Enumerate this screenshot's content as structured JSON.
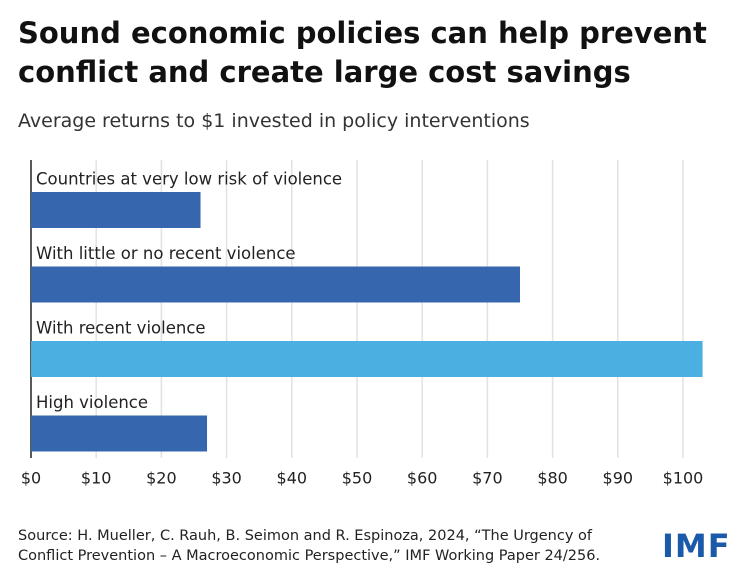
{
  "chart_data": {
    "type": "hbar",
    "title": "Sound economic policies can help prevent conflict and create large cost savings",
    "subtitle": "Average returns to $1 invested in policy interventions",
    "categories": [
      "Countries at very low risk of violence",
      "With little or no recent violence",
      "With recent violence",
      "High violence"
    ],
    "values": [
      26,
      75,
      103,
      27
    ],
    "colors": [
      "#3667ae",
      "#3667ae",
      "#4cafe2",
      "#3667ae"
    ],
    "xlim": [
      0,
      105
    ],
    "xticks": [
      {
        "value": 0,
        "label": "$0"
      },
      {
        "value": 10,
        "label": "$10"
      },
      {
        "value": 20,
        "label": "$20"
      },
      {
        "value": 30,
        "label": "$30"
      },
      {
        "value": 40,
        "label": "$40"
      },
      {
        "value": 50,
        "label": "$50"
      },
      {
        "value": 60,
        "label": "$60"
      },
      {
        "value": 70,
        "label": "$70"
      },
      {
        "value": 80,
        "label": "$80"
      },
      {
        "value": 90,
        "label": "$90"
      },
      {
        "value": 100,
        "label": "$100"
      }
    ],
    "grid": true,
    "source": "Source: H. Mueller, C. Rauh, B. Seimon and R. Espinoza, 2024, “The Urgency of Conflict Prevention – A Macroeconomic Perspective,” IMF Working Paper 24/256.",
    "logo": "IMF"
  }
}
